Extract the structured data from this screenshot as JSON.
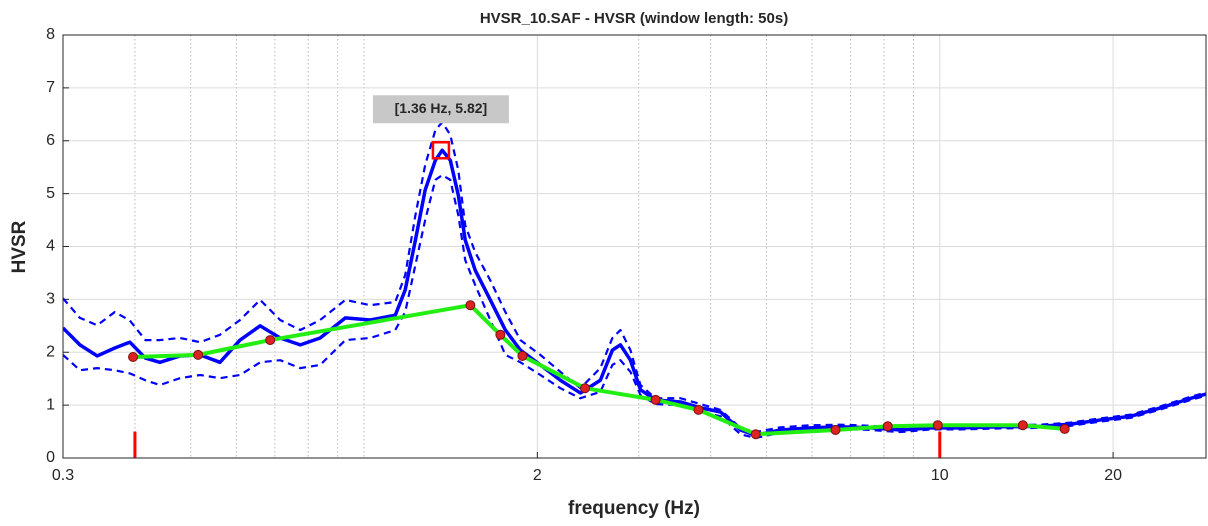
{
  "chart_data": {
    "type": "line",
    "title": "HVSR_10.SAF - HVSR (window length: 50s)",
    "xlabel": "frequency (Hz)",
    "ylabel": "HVSR",
    "xscale": "log",
    "xlim": [
      0.3,
      29
    ],
    "ylim": [
      0,
      8
    ],
    "xticks": [
      0.3,
      2,
      10,
      20
    ],
    "xminor": [
      0.4,
      0.5,
      0.6,
      0.7,
      0.8,
      0.9,
      1,
      3,
      4,
      5,
      6,
      7,
      8,
      9
    ],
    "yticks": [
      0,
      1,
      2,
      3,
      4,
      5,
      6,
      7,
      8
    ],
    "grid": true,
    "series": [
      {
        "color": "#0000ff",
        "style": "dashed",
        "width": 2.2,
        "x": [
          0.3,
          0.321,
          0.344,
          0.369,
          0.392,
          0.417,
          0.442,
          0.479,
          0.519,
          0.562,
          0.609,
          0.66,
          0.715,
          0.775,
          0.839,
          0.928,
          1.025,
          1.133,
          1.179,
          1.228,
          1.277,
          1.33,
          1.367,
          1.412,
          1.458,
          1.499,
          1.56,
          1.657,
          1.76,
          1.869,
          2.024,
          2.193,
          2.375,
          2.573,
          2.7,
          2.788,
          2.902,
          3.021,
          3.207,
          3.546,
          3.84,
          4.161,
          4.506,
          4.785,
          5.289,
          5.967,
          6.726,
          7.581,
          8.55,
          9.645,
          10.87,
          12.76,
          14.98,
          16.88,
          19.04,
          21.47,
          24.21,
          27.3,
          29
        ],
        "values": [
          3.02,
          2.65,
          2.51,
          2.76,
          2.6,
          2.23,
          2.23,
          2.27,
          2.19,
          2.33,
          2.61,
          2.99,
          2.61,
          2.42,
          2.61,
          2.99,
          2.89,
          2.95,
          3.46,
          4.59,
          5.54,
          6.2,
          6.35,
          6.11,
          5.44,
          4.4,
          3.89,
          3.36,
          2.76,
          2.23,
          1.95,
          1.63,
          1.32,
          1.7,
          2.27,
          2.42,
          2.04,
          1.38,
          1.13,
          1.13,
          1.02,
          0.91,
          0.57,
          0.49,
          0.58,
          0.62,
          0.63,
          0.61,
          0.57,
          0.6,
          0.6,
          0.62,
          0.63,
          0.67,
          0.75,
          0.82,
          0.98,
          1.16,
          1.24
        ]
      },
      {
        "color": "#0000ff",
        "style": "dashed",
        "width": 2.2,
        "x": [
          0.3,
          0.321,
          0.344,
          0.369,
          0.392,
          0.417,
          0.442,
          0.479,
          0.519,
          0.562,
          0.609,
          0.66,
          0.715,
          0.775,
          0.839,
          0.928,
          1.025,
          1.133,
          1.179,
          1.228,
          1.277,
          1.33,
          1.367,
          1.412,
          1.458,
          1.499,
          1.56,
          1.657,
          1.76,
          1.869,
          2.024,
          2.193,
          2.375,
          2.573,
          2.7,
          2.788,
          2.902,
          3.021,
          3.207,
          3.546,
          3.84,
          4.161,
          4.506,
          4.785,
          5.289,
          5.967,
          6.726,
          7.581,
          8.55,
          9.645,
          10.87,
          12.76,
          14.98,
          16.88,
          19.04,
          21.47,
          24.21,
          27.3,
          29
        ],
        "values": [
          1.95,
          1.66,
          1.7,
          1.66,
          1.6,
          1.47,
          1.38,
          1.51,
          1.57,
          1.51,
          1.57,
          1.81,
          1.85,
          1.7,
          1.76,
          2.23,
          2.27,
          2.42,
          2.76,
          3.65,
          4.5,
          5.26,
          5.35,
          5.26,
          4.59,
          3.74,
          3.27,
          2.61,
          1.95,
          1.81,
          1.57,
          1.32,
          1.13,
          1.25,
          1.76,
          1.85,
          1.63,
          1.19,
          1.02,
          1.0,
          0.87,
          0.79,
          0.45,
          0.38,
          0.48,
          0.52,
          0.55,
          0.53,
          0.49,
          0.54,
          0.54,
          0.56,
          0.57,
          0.61,
          0.69,
          0.76,
          0.92,
          1.1,
          1.18
        ]
      },
      {
        "color": "#0000ff",
        "style": "solid",
        "width": 3.5,
        "x": [
          0.3,
          0.321,
          0.344,
          0.369,
          0.392,
          0.417,
          0.442,
          0.479,
          0.519,
          0.562,
          0.609,
          0.66,
          0.715,
          0.775,
          0.839,
          0.928,
          1.025,
          1.133,
          1.179,
          1.228,
          1.277,
          1.33,
          1.367,
          1.412,
          1.458,
          1.499,
          1.56,
          1.657,
          1.76,
          1.869,
          2.024,
          2.193,
          2.375,
          2.573,
          2.7,
          2.788,
          2.902,
          3.021,
          3.207,
          3.546,
          3.84,
          4.161,
          4.506,
          4.785,
          5.289,
          5.967,
          6.726,
          7.581,
          8.55,
          9.645,
          10.87,
          12.76,
          14.98,
          16.88,
          19.04,
          21.47,
          24.21,
          27.3,
          29
        ],
        "values": [
          2.46,
          2.14,
          1.93,
          2.08,
          2.19,
          1.89,
          1.81,
          1.93,
          1.95,
          1.81,
          2.23,
          2.5,
          2.27,
          2.14,
          2.27,
          2.65,
          2.61,
          2.7,
          3.18,
          4.12,
          5.07,
          5.63,
          5.82,
          5.63,
          4.97,
          4.12,
          3.55,
          2.99,
          2.42,
          2.04,
          1.76,
          1.47,
          1.23,
          1.47,
          2.04,
          2.14,
          1.85,
          1.29,
          1.1,
          1.06,
          0.95,
          0.87,
          0.53,
          0.43,
          0.53,
          0.57,
          0.59,
          0.57,
          0.53,
          0.57,
          0.57,
          0.59,
          0.6,
          0.64,
          0.72,
          0.79,
          0.95,
          1.13,
          1.21
        ]
      },
      {
        "color": "#22ee11",
        "style": "solid",
        "width": 4,
        "marker_color": "#dd2222",
        "x": [
          0.397,
          0.515,
          0.687,
          1.53,
          1.725,
          1.884,
          2.42,
          3.21,
          3.81,
          4.79,
          6.59,
          8.12,
          9.92,
          13.94,
          16.48
        ],
        "values": [
          1.91,
          1.95,
          2.23,
          2.89,
          2.33,
          1.93,
          1.32,
          1.1,
          0.91,
          0.45,
          0.53,
          0.6,
          0.62,
          0.62,
          0.55
        ]
      }
    ],
    "vlines": {
      "color": "#ff0000",
      "x": [
        0.4,
        10
      ],
      "height": 0.5
    },
    "annotation": {
      "text": "[1.36 Hz, 5.82]",
      "x": 1.36,
      "y": 5.82,
      "color": "#ff0000"
    }
  }
}
